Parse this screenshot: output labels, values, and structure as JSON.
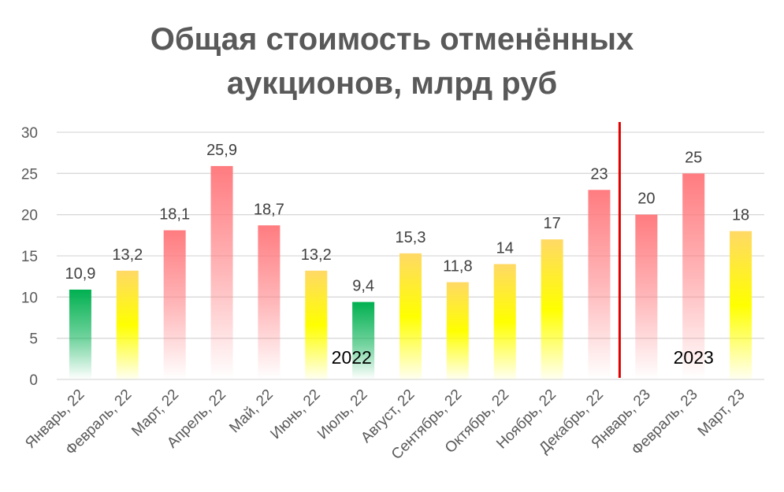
{
  "chart_data": {
    "type": "bar",
    "title_line1": "Общая стоимость отменённых",
    "title_line2": "аукционов, млрд руб",
    "categories": [
      "Январь, 22",
      "Февраль, 22",
      "Март, 22",
      "Апрель, 22",
      "Май, 22",
      "Июнь, 22",
      "Июль, 22",
      "Август, 22",
      "Сентябрь, 22",
      "Октябрь, 22",
      "Ноябрь, 22",
      "Декабрь, 22",
      "Январь, 23",
      "Февраль, 23",
      "Март, 23"
    ],
    "values": [
      10.9,
      13.2,
      18.1,
      25.9,
      18.7,
      13.2,
      9.4,
      15.3,
      11.8,
      14,
      17,
      23,
      20,
      25,
      18
    ],
    "value_labels": [
      "10,9",
      "13,2",
      "18,1",
      "25,9",
      "18,7",
      "13,2",
      "9,4",
      "15,3",
      "11,8",
      "14",
      "17",
      "23",
      "20",
      "25",
      "18"
    ],
    "bar_colors": [
      "green",
      "yellow",
      "red",
      "red",
      "red",
      "yellow",
      "green",
      "yellow",
      "yellow",
      "yellow",
      "yellow",
      "red",
      "red",
      "red",
      "yellow"
    ],
    "palette": {
      "green": "#00b050",
      "yellow": "#ffff00",
      "yellow_top": "#ffd966",
      "red": "#ff7c80",
      "divider": "#e00000",
      "grid": "#d9d9d9"
    },
    "ylim": [
      0,
      30
    ],
    "yticks": [
      "0",
      "5",
      "10",
      "15",
      "20",
      "25",
      "30"
    ],
    "grid": true,
    "legend": "none",
    "annotations": [
      {
        "text": "2022"
      },
      {
        "text": "2023"
      }
    ],
    "xlabel": "",
    "ylabel": ""
  }
}
